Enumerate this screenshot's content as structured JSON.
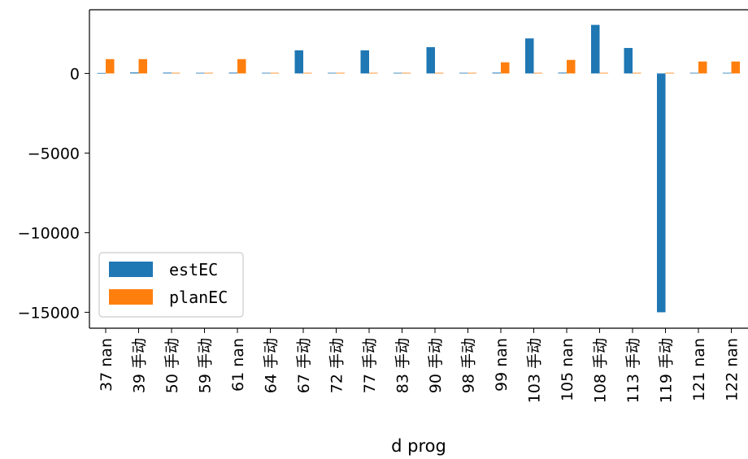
{
  "chart_data": {
    "type": "bar",
    "xlabel": "d prog",
    "ylabel": "",
    "ylim": [
      -16000,
      4000
    ],
    "y_ticks": [
      0,
      -5000,
      -10000,
      -15000
    ],
    "y_tick_labels": [
      "0",
      "−5000",
      "−10000",
      "−15000"
    ],
    "categories": [
      "37 nan",
      "39 手动",
      "50 手动",
      "59 手动",
      "61 nan",
      "64 手动",
      "67 手动",
      "72 手动",
      "77 手动",
      "83 手动",
      "90 手动",
      "98 手动",
      "99 nan",
      "103 手动",
      "105 nan",
      "108 手动",
      "113 手动",
      "119 手动",
      "121 nan",
      "122 nan"
    ],
    "series": [
      {
        "name": "estEC",
        "color": "#1f77b4",
        "values": [
          30,
          60,
          50,
          40,
          50,
          40,
          1450,
          40,
          1450,
          40,
          1650,
          40,
          50,
          2200,
          50,
          3050,
          1600,
          -15000,
          40,
          40
        ]
      },
      {
        "name": "planEC",
        "color": "#ff7f0e",
        "values": [
          900,
          900,
          40,
          40,
          900,
          40,
          40,
          40,
          40,
          40,
          40,
          40,
          700,
          40,
          850,
          40,
          40,
          40,
          750,
          750
        ]
      }
    ],
    "legend_position": "lower-left",
    "grid": false
  }
}
